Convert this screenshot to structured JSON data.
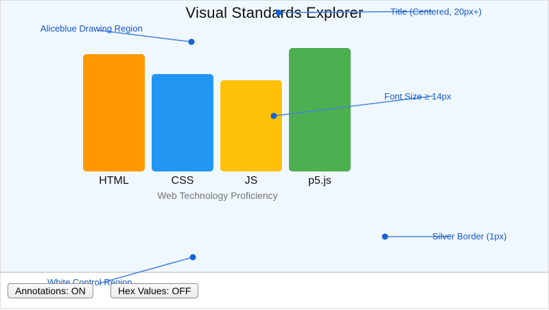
{
  "title": "Visual Standards Explorer",
  "chart_data": {
    "type": "bar",
    "title": "Visual Standards Explorer",
    "caption": "Web Technology Proficiency",
    "categories": [
      "HTML",
      "CSS",
      "JS",
      "p5.js"
    ],
    "values": [
      90,
      75,
      70,
      95
    ],
    "bar_colors": [
      "#ff9800",
      "#2196f3",
      "#ffc107",
      "#4caf50"
    ],
    "ylim": [
      0,
      100
    ],
    "grid": false,
    "axes_visible": false,
    "legend": "none"
  },
  "annotations": {
    "text_color": "#1456c8",
    "line_color": "#4a84dd",
    "dot_color": "#1662d6",
    "items": [
      {
        "label": "Title (Centered, 20px+)"
      },
      {
        "label": "Aliceblue Drawing Region"
      },
      {
        "label": "Font Size ≥ 14px"
      },
      {
        "label": "Silver Border (1px)"
      },
      {
        "label": "White Control Region"
      }
    ]
  },
  "controls": {
    "annotations_button": "Annotations: ON",
    "hex_values_button": "Hex Values: OFF"
  },
  "theme": {
    "drawing_region_bg": "#f0f8ff",
    "control_region_bg": "#ffffff",
    "border_color": "#c0c0c0",
    "caption_color": "#757575"
  }
}
